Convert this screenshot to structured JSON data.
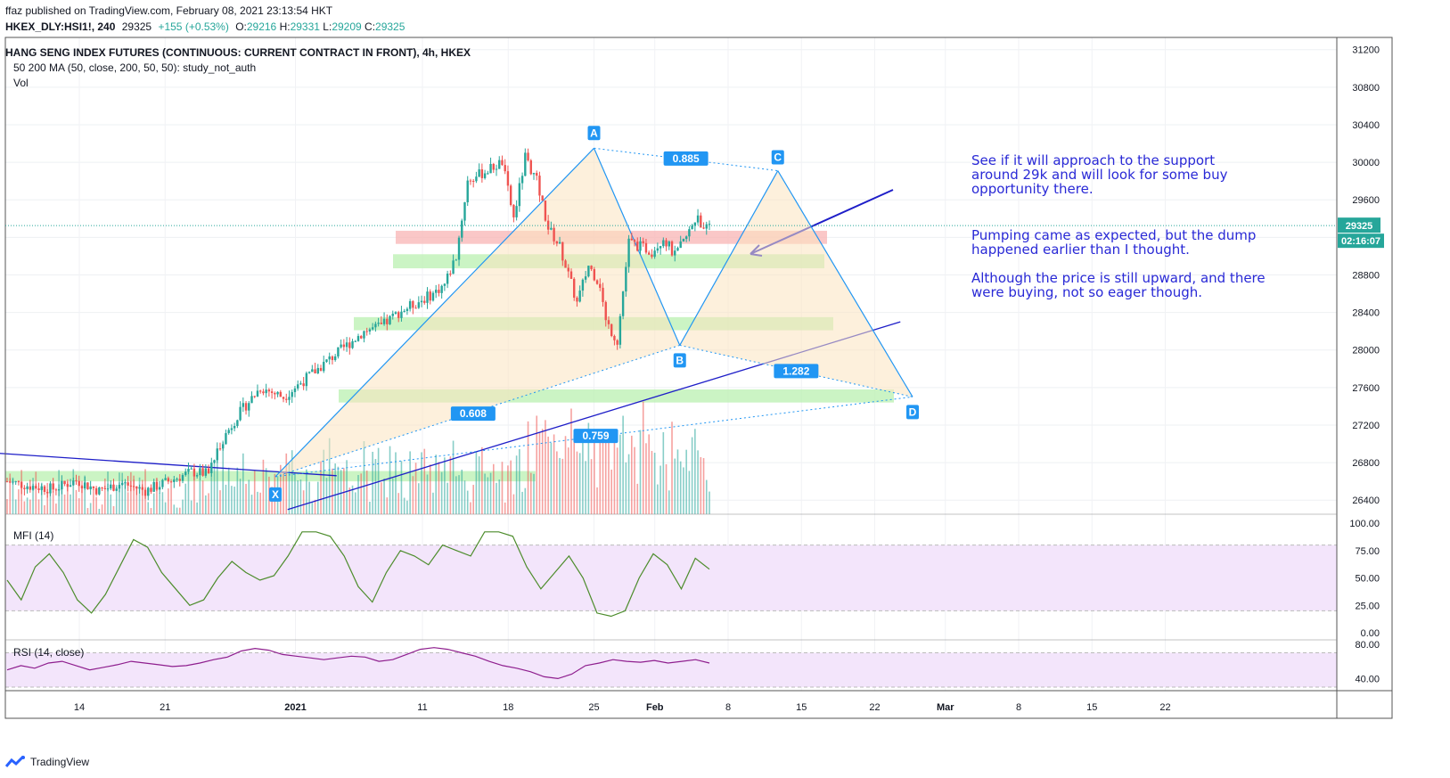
{
  "header": {
    "published_line": "ffaz published on TradingView.com, February 08, 2021 23:13:54 HKT",
    "ticker": "HKEX_DLY:HSI1!, 240",
    "last": "29325",
    "change": "+155 (+0.53%)",
    "o_label": "O:",
    "o": "29216",
    "h_label": "H:",
    "h": "29331",
    "l_label": "L:",
    "l": "29209",
    "c_label": "C:",
    "c": "29325",
    "instrument": "HANG SENG INDEX FUTURES (CONTINUOUS: CURRENT CONTRACT IN FRONT), 4h, HKEX",
    "study": "50 200 MA (50, close, 200, 50, 50): study_not_auth",
    "vol": "Vol"
  },
  "price_badge": "29325",
  "time_badge": "02:16:07",
  "annotations": [
    "See if it will approach to the support around 29k and will look for some buy opportunity there.",
    "Pumping came as expected, but the dump happened earlier than I thought.",
    "Although the price is still upward, and there were buying, not so eager though."
  ],
  "pattern_labels": {
    "X": "X",
    "A": "A",
    "B": "B",
    "C": "C",
    "D": "D"
  },
  "ratios": {
    "xb": "0.608",
    "ac": "0.885",
    "bd": "1.282",
    "xd": "0.759"
  },
  "colors": {
    "up": "#26a69a",
    "down": "#ef5350",
    "pattern_line": "#2196f3",
    "pattern_fill": "#fbe3c0",
    "support_zone": "#b9f0b0",
    "resistance_zone": "#f8b4b4",
    "trendline": "#1e1ec8",
    "mfi_line": "#4c8c2b",
    "rsi_line": "#8e1e8e",
    "osc_bg": "#f3e5fb",
    "badge": "#2196f3"
  },
  "footer": {
    "brand": "TradingView"
  },
  "chart_data": [
    {
      "type": "candlestick",
      "title": "HANG SENG INDEX FUTURES (CONTINUOUS: CURRENT CONTRACT IN FRONT), 4h, HKEX",
      "x_tick_labels": [
        "14",
        "21",
        "2021",
        "11",
        "18",
        "25",
        "Feb",
        "8",
        "15",
        "22",
        "Mar",
        "8",
        "15",
        "22"
      ],
      "y_tick_labels": [
        "31200",
        "30800",
        "30400",
        "30000",
        "29600",
        "29200",
        "28800",
        "28400",
        "28000",
        "27600",
        "27200",
        "26800",
        "26400"
      ],
      "ylim": [
        26250,
        31330
      ],
      "last_price": 29325,
      "pattern_points": [
        {
          "label": "X",
          "date": "2020-12-30",
          "price": 26650
        },
        {
          "label": "A",
          "date": "2021-01-25",
          "price": 30150
        },
        {
          "label": "B",
          "date": "2021-02-01",
          "price": 28050
        },
        {
          "label": "C",
          "date": "2021-02-09",
          "price": 29910
        },
        {
          "label": "D",
          "date": "2021-02-20",
          "price": 27500
        }
      ],
      "zones": [
        {
          "kind": "resistance",
          "from": 29130,
          "to": 29270
        },
        {
          "kind": "support",
          "from": 28870,
          "to": 29020
        },
        {
          "kind": "support",
          "from": 28210,
          "to": 28350
        },
        {
          "kind": "support",
          "from": 27440,
          "to": 27580
        },
        {
          "kind": "support",
          "from": 26600,
          "to": 26710
        }
      ],
      "trendlines": [
        {
          "from": {
            "date": "2020-12-31",
            "price": 26300
          },
          "to": {
            "date": "2021-02-19",
            "price": 28300
          }
        },
        {
          "from": {
            "date": "2020-12-05",
            "price": 26920
          },
          "to": {
            "date": "2021-01-04",
            "price": 26660
          }
        }
      ],
      "close_path": [
        [
          0,
          26600
        ],
        [
          8,
          26550
        ],
        [
          16,
          26520
        ],
        [
          24,
          26610
        ],
        [
          32,
          26500
        ],
        [
          40,
          26580
        ],
        [
          48,
          26500
        ],
        [
          56,
          26600
        ],
        [
          64,
          26700
        ],
        [
          70,
          26680
        ],
        [
          74,
          27000
        ],
        [
          80,
          27300
        ],
        [
          88,
          27600
        ],
        [
          96,
          27500
        ],
        [
          104,
          27700
        ],
        [
          112,
          27900
        ],
        [
          118,
          28050
        ],
        [
          124,
          28200
        ],
        [
          130,
          28250
        ],
        [
          136,
          28400
        ],
        [
          142,
          28500
        ],
        [
          148,
          28600
        ],
        [
          152,
          28700
        ],
        [
          156,
          29000
        ],
        [
          160,
          29800
        ],
        [
          166,
          29900
        ],
        [
          172,
          30000
        ],
        [
          176,
          29400
        ],
        [
          180,
          30050
        ],
        [
          184,
          29800
        ],
        [
          188,
          29300
        ],
        [
          192,
          29100
        ],
        [
          196,
          28700
        ],
        [
          198,
          28500
        ],
        [
          202,
          28900
        ],
        [
          206,
          28700
        ],
        [
          208,
          28300
        ],
        [
          212,
          28100
        ],
        [
          216,
          29150
        ],
        [
          220,
          29100
        ],
        [
          224,
          29050
        ],
        [
          228,
          29200
        ],
        [
          232,
          29000
        ],
        [
          236,
          29200
        ],
        [
          240,
          29450
        ],
        [
          242,
          29250
        ],
        [
          244,
          29325
        ]
      ]
    },
    {
      "type": "line",
      "title": "MFI (14)",
      "y_tick_labels": [
        "100.00",
        "75.00",
        "50.00",
        "25.00",
        "0.00"
      ],
      "ylim": [
        0,
        100
      ],
      "bands": [
        20,
        80
      ],
      "values": [
        48,
        30,
        60,
        72,
        55,
        30,
        18,
        35,
        60,
        85,
        78,
        55,
        40,
        25,
        30,
        50,
        65,
        55,
        48,
        52,
        70,
        92,
        92,
        88,
        70,
        42,
        28,
        55,
        75,
        70,
        62,
        80,
        75,
        70,
        92,
        92,
        88,
        60,
        40,
        55,
        70,
        50,
        18,
        15,
        20,
        50,
        72,
        62,
        40,
        68,
        58
      ]
    },
    {
      "type": "line",
      "title": "RSI (14, close)",
      "y_tick_labels": [
        "80.00",
        "40.00"
      ],
      "ylim": [
        30,
        85
      ],
      "bands": [
        30,
        70
      ],
      "values": [
        50,
        55,
        52,
        58,
        60,
        55,
        50,
        53,
        56,
        60,
        58,
        56,
        54,
        55,
        58,
        62,
        65,
        72,
        75,
        73,
        68,
        66,
        64,
        62,
        64,
        66,
        65,
        60,
        62,
        68,
        74,
        76,
        74,
        70,
        66,
        60,
        55,
        52,
        48,
        42,
        40,
        45,
        55,
        58,
        62,
        60,
        59,
        61,
        58,
        60,
        62,
        58
      ]
    }
  ]
}
